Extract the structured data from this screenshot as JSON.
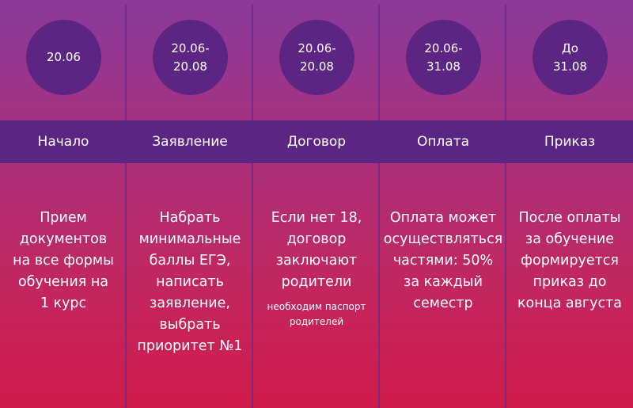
{
  "colors": {
    "top": "#8a3a9a",
    "bottom": "#d01b4a",
    "band": "#5c2583",
    "circle": "#5c2583"
  },
  "steps": [
    {
      "date": "20.06",
      "stage": "Начало",
      "text": "Прием\nдокументов\nна все формы\nобучения на\n1 курс",
      "note": ""
    },
    {
      "date": "20.06-\n20.08",
      "stage": "Заявление",
      "text": "Набрать\nминимальные\nбаллы ЕГЭ,\nнаписать\nзаявление,\nвыбрать\nприоритет №1",
      "note": ""
    },
    {
      "date": "20.06-\n20.08",
      "stage": "Договор",
      "text": "Если нет 18,\nдоговор\nзаключают\nродители",
      "note": "необходим паспорт\nродителей"
    },
    {
      "date": "20.06-\n31.08",
      "stage": "Оплата",
      "text": "Оплата может\nосуществляться\nчастями: 50%\nза каждый\nсеместр",
      "note": ""
    },
    {
      "date": "До\n31.08",
      "stage": "Приказ",
      "text": "После оплаты\nза обучение\nформируется\nприказ до\nконца августа",
      "note": ""
    }
  ]
}
